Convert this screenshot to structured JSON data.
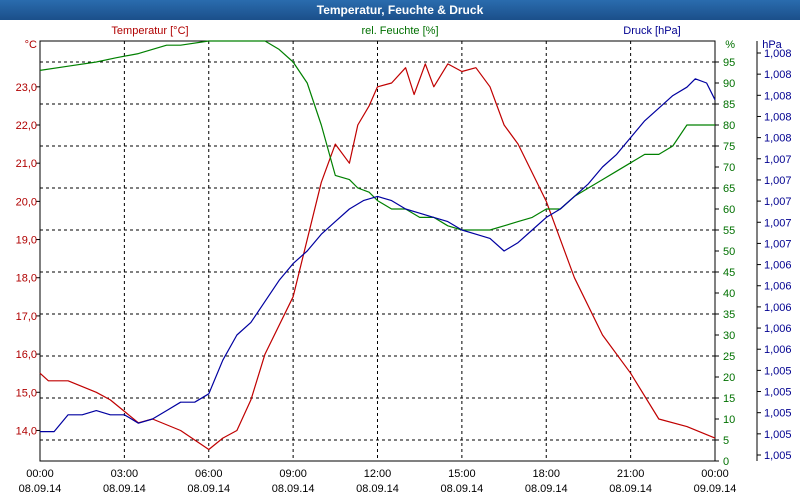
{
  "window": {
    "title": "Temperatur, Feuchte & Druck"
  },
  "chart_data": {
    "type": "line",
    "title": "Temperatur, Feuchte & Druck",
    "grid": true,
    "x": {
      "range": [
        "2014-09-08 00:00",
        "2014-09-09 00:00"
      ],
      "ticks": [
        {
          "time": "00:00",
          "date": "08.09.14"
        },
        {
          "time": "03:00",
          "date": "08.09.14"
        },
        {
          "time": "06:00",
          "date": "08.09.14"
        },
        {
          "time": "09:00",
          "date": "08.09.14"
        },
        {
          "time": "12:00",
          "date": "08.09.14"
        },
        {
          "time": "15:00",
          "date": "08.09.14"
        },
        {
          "time": "18:00",
          "date": "08.09.14"
        },
        {
          "time": "21:00",
          "date": "08.09.14"
        },
        {
          "time": "00:00",
          "date": "09.09.14"
        }
      ]
    },
    "axes": {
      "temperature": {
        "label": "Temperatur [°C]",
        "unit": "°C",
        "color": "#b00000",
        "range": [
          13.2,
          24.2
        ],
        "ticks": [
          "14,0",
          "15,0",
          "16,0",
          "17,0",
          "18,0",
          "19,0",
          "20,0",
          "21,0",
          "22,0",
          "23,0"
        ]
      },
      "humidity": {
        "label": "rel. Feuchte [%]",
        "unit": "%",
        "color": "#007000",
        "range": [
          0,
          100
        ],
        "ticks": [
          "0",
          "5",
          "10",
          "15",
          "20",
          "25",
          "30",
          "35",
          "40",
          "45",
          "50",
          "55",
          "60",
          "65",
          "70",
          "75",
          "80",
          "85",
          "90",
          "95"
        ]
      },
      "pressure": {
        "label": "Druck [hPa]",
        "unit": "hPa",
        "color": "#000090",
        "range": [
          0,
          1
        ],
        "ticks": [
          "1,005",
          "1,005",
          "1,005",
          "1,005",
          "1,005",
          "1,006",
          "1,006",
          "1,006",
          "1,006",
          "1,006",
          "1,007",
          "1,007",
          "1,007",
          "1,007",
          "1,007",
          "1,008",
          "1,008",
          "1,008",
          "1,008",
          "1,008"
        ]
      }
    },
    "series": [
      {
        "name": "Temperatur [°C]",
        "axis": "temperature",
        "color": "#c00000",
        "hours": [
          0,
          0.3,
          1,
          2,
          2.5,
          3,
          3.5,
          4,
          5,
          6,
          6.5,
          7,
          7.5,
          8,
          9,
          10,
          10.5,
          11,
          11.3,
          11.7,
          12,
          12.5,
          13,
          13.3,
          13.7,
          14,
          14.5,
          15,
          15.5,
          16,
          16.5,
          17,
          18,
          19,
          20,
          21,
          22,
          23,
          24
        ],
        "values": [
          15.5,
          15.3,
          15.3,
          15.0,
          14.8,
          14.5,
          14.2,
          14.3,
          14.0,
          13.5,
          13.8,
          14.0,
          14.8,
          16.0,
          17.5,
          20.5,
          21.5,
          21.0,
          22.0,
          22.5,
          23.0,
          23.1,
          23.5,
          22.8,
          23.6,
          23.0,
          23.6,
          23.4,
          23.5,
          23.0,
          22.0,
          21.5,
          20.0,
          18.0,
          16.5,
          15.5,
          14.3,
          14.1,
          13.8
        ]
      },
      {
        "name": "rel. Feuchte [%]",
        "axis": "humidity",
        "color": "#008000",
        "hours": [
          0,
          1,
          2,
          2.7,
          3.5,
          4.5,
          5,
          6,
          7,
          8,
          8.5,
          9,
          9.5,
          10,
          10.5,
          11,
          11.3,
          11.7,
          12,
          12.5,
          13,
          13.5,
          14,
          14.5,
          15,
          15.5,
          16,
          16.5,
          17,
          17.5,
          18,
          18.5,
          19,
          19.5,
          20,
          20.5,
          21,
          21.5,
          22,
          22.5,
          23,
          24
        ],
        "values": [
          93,
          94,
          95,
          96,
          97,
          99,
          99,
          100,
          100,
          100,
          98,
          95,
          90,
          80,
          68,
          67,
          65,
          64,
          62,
          60,
          60,
          58,
          58,
          56,
          55,
          55,
          55,
          56,
          57,
          58,
          60,
          60,
          63,
          65,
          67,
          69,
          71,
          73,
          73,
          75,
          80,
          80
        ]
      },
      {
        "name": "Druck [hPa]",
        "axis": "pressure",
        "color": "#0000a0",
        "hours": [
          0,
          0.5,
          1,
          1.5,
          2,
          2.5,
          3,
          3.5,
          4,
          4.5,
          5,
          5.5,
          6,
          6.5,
          7,
          7.5,
          8,
          8.5,
          9,
          9.5,
          10,
          10.5,
          11,
          11.5,
          12,
          12.5,
          13,
          13.5,
          14,
          14.5,
          15,
          15.5,
          16,
          16.5,
          17,
          17.5,
          18,
          18.5,
          19,
          19.5,
          20,
          20.5,
          21,
          21.5,
          22,
          22.5,
          23,
          23.3,
          23.7,
          24
        ],
        "values": [
          0.07,
          0.07,
          0.11,
          0.11,
          0.12,
          0.11,
          0.11,
          0.09,
          0.1,
          0.12,
          0.14,
          0.14,
          0.16,
          0.24,
          0.3,
          0.33,
          0.38,
          0.43,
          0.47,
          0.5,
          0.54,
          0.57,
          0.6,
          0.62,
          0.63,
          0.62,
          0.6,
          0.59,
          0.58,
          0.57,
          0.55,
          0.54,
          0.53,
          0.5,
          0.52,
          0.55,
          0.58,
          0.6,
          0.63,
          0.66,
          0.7,
          0.73,
          0.77,
          0.81,
          0.84,
          0.87,
          0.89,
          0.91,
          0.9,
          0.86
        ]
      }
    ]
  }
}
